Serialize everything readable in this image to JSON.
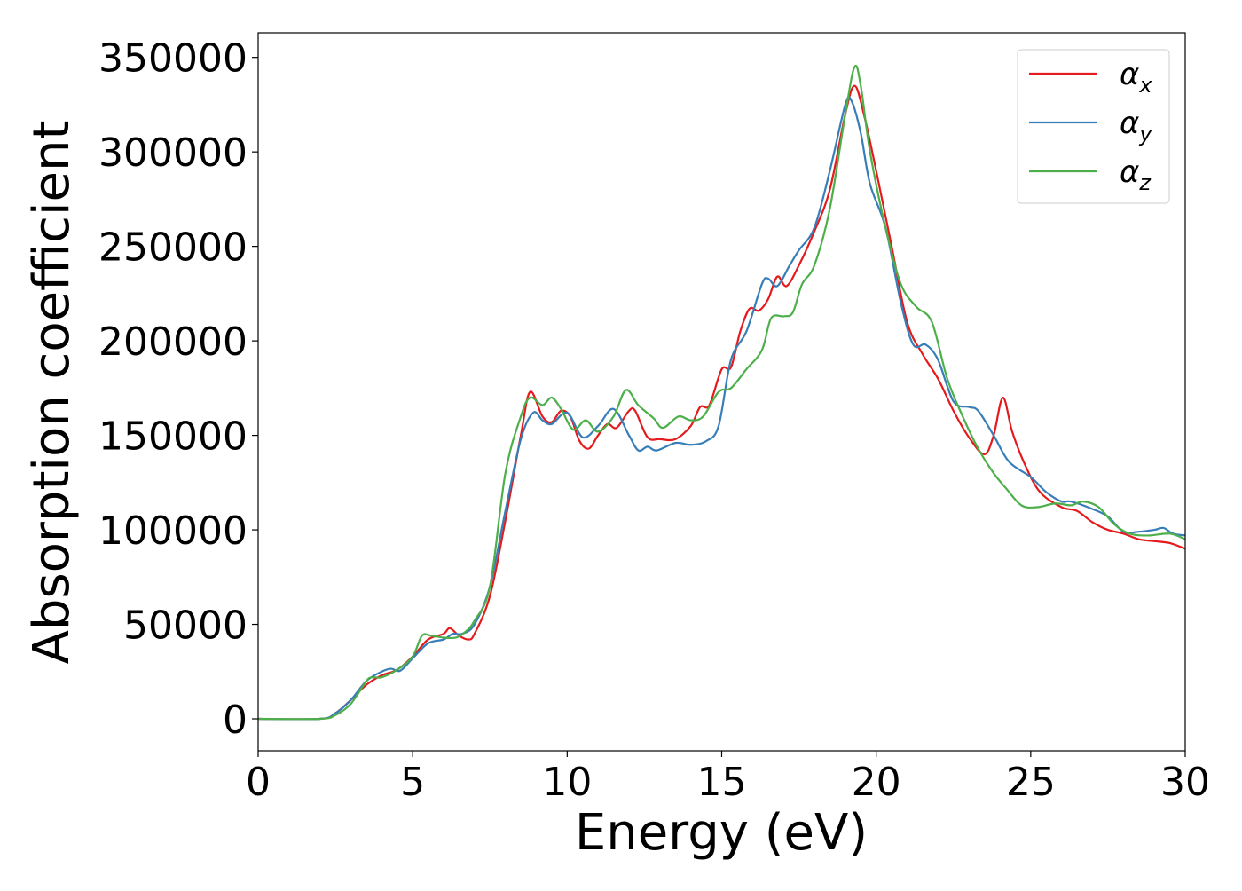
{
  "chart_data": {
    "type": "line",
    "title": "",
    "xlabel": "Energy (eV)",
    "ylabel": "Absorption coefficient",
    "xlim": [
      0,
      30
    ],
    "ylim": [
      -16900,
      363000
    ],
    "xticks": [
      0,
      5,
      10,
      15,
      20,
      25,
      30
    ],
    "yticks": [
      0,
      50000,
      100000,
      150000,
      200000,
      250000,
      300000,
      350000
    ],
    "grid": false,
    "legend_position": "top-right",
    "series": [
      {
        "name": "α",
        "subscript": "x",
        "color": "#e41a1c",
        "x": [
          0,
          2,
          2.5,
          3,
          3.5,
          4,
          4.5,
          5,
          5.5,
          6,
          6.2,
          6.5,
          6.8,
          7,
          7.5,
          8,
          8.5,
          8.8,
          9.2,
          9.5,
          9.8,
          10.1,
          10.4,
          10.7,
          11,
          11.3,
          11.6,
          12,
          12.2,
          12.6,
          13,
          13.5,
          14,
          14.3,
          14.6,
          15,
          15.3,
          15.6,
          15.9,
          16.2,
          16.5,
          16.8,
          17.1,
          17.5,
          18,
          18.5,
          19,
          19.3,
          19.6,
          20,
          20.5,
          21,
          21.5,
          22,
          22.5,
          23,
          23.5,
          23.8,
          24.1,
          24.4,
          24.8,
          25.3,
          26,
          26.5,
          27,
          27.5,
          28,
          28.5,
          29,
          29.5,
          30
        ],
        "y": [
          0,
          0,
          3000,
          10000,
          18000,
          23000,
          26000,
          33000,
          42000,
          45000,
          48000,
          44000,
          42000,
          45000,
          65000,
          105000,
          150000,
          173000,
          160000,
          157000,
          163000,
          160000,
          147000,
          143000,
          150000,
          156000,
          154000,
          163000,
          163000,
          149000,
          148000,
          148000,
          155000,
          165000,
          166000,
          185000,
          186000,
          205000,
          217000,
          216000,
          222000,
          234000,
          229000,
          240000,
          258000,
          280000,
          320000,
          335000,
          320000,
          290000,
          250000,
          210000,
          193000,
          180000,
          163000,
          149000,
          140000,
          150000,
          170000,
          152000,
          135000,
          120000,
          112000,
          110000,
          104000,
          100000,
          98000,
          95000,
          94000,
          93000,
          90000
        ]
      },
      {
        "name": "α",
        "subscript": "y",
        "color": "#377eb8",
        "x": [
          0,
          2,
          2.5,
          3,
          3.5,
          4,
          4.3,
          4.6,
          5,
          5.5,
          6,
          6.3,
          6.6,
          7,
          7.5,
          8,
          8.5,
          8.9,
          9.2,
          9.5,
          10,
          10.5,
          11,
          11.5,
          12,
          12.3,
          12.6,
          12.9,
          13.5,
          14,
          14.5,
          14.9,
          15.3,
          15.8,
          16.3,
          16.5,
          16.8,
          17.2,
          17.5,
          18,
          18.5,
          19,
          19.2,
          19.5,
          19.8,
          20.3,
          20.8,
          21.2,
          21.6,
          22,
          22.5,
          23,
          23.3,
          23.8,
          24.3,
          25,
          25.5,
          26,
          26.3,
          27,
          27.5,
          28,
          28.5,
          29,
          29.3,
          29.6,
          30
        ],
        "y": [
          0,
          0,
          3000,
          10000,
          20000,
          25000,
          26500,
          25500,
          32000,
          40000,
          42000,
          45000,
          45000,
          50000,
          70000,
          110000,
          148000,
          162000,
          158000,
          156000,
          162000,
          149000,
          155000,
          164000,
          150000,
          142000,
          144000,
          142000,
          146000,
          145000,
          147000,
          155000,
          190000,
          205000,
          230000,
          233000,
          229000,
          240000,
          248000,
          260000,
          290000,
          325000,
          327000,
          310000,
          283000,
          260000,
          220000,
          198000,
          198000,
          190000,
          168000,
          165000,
          163000,
          150000,
          136000,
          128000,
          120000,
          115000,
          115000,
          111000,
          107000,
          99000,
          99000,
          100000,
          101000,
          98000,
          97000
        ]
      },
      {
        "name": "α",
        "subscript": "z",
        "color": "#4daf4a",
        "x": [
          0,
          2,
          2.5,
          3,
          3.5,
          3.7,
          4,
          4.5,
          5,
          5.3,
          5.6,
          6,
          6.4,
          6.7,
          7,
          7.5,
          8,
          8.5,
          8.8,
          9.2,
          9.5,
          9.8,
          10.2,
          10.6,
          11,
          11.5,
          11.9,
          12.3,
          12.8,
          13.1,
          13.6,
          14,
          14.4,
          14.9,
          15.3,
          15.8,
          16.3,
          16.6,
          17,
          17.3,
          17.6,
          18,
          18.5,
          19,
          19.3,
          19.5,
          19.8,
          20.3,
          20.8,
          21.3,
          21.8,
          22.3,
          22.8,
          23.3,
          23.8,
          24.2,
          24.7,
          25.2,
          25.8,
          26.3,
          26.7,
          27.2,
          27.7,
          28.2,
          28.8,
          29.5,
          30
        ],
        "y": [
          0,
          0,
          2000,
          8000,
          20000,
          22000,
          22000,
          26000,
          33000,
          44000,
          44000,
          43000,
          43000,
          46000,
          52000,
          70000,
          130000,
          160000,
          170000,
          166000,
          170000,
          164000,
          153000,
          158000,
          152000,
          160000,
          174000,
          166000,
          159000,
          154000,
          160000,
          158000,
          160000,
          173000,
          175000,
          185000,
          195000,
          212000,
          213000,
          215000,
          230000,
          240000,
          270000,
          320000,
          345000,
          335000,
          300000,
          260000,
          230000,
          218000,
          210000,
          180000,
          160000,
          143000,
          130000,
          122000,
          113000,
          112000,
          114000,
          113000,
          115000,
          112000,
          103000,
          98000,
          97000,
          98000,
          95000
        ]
      }
    ]
  }
}
